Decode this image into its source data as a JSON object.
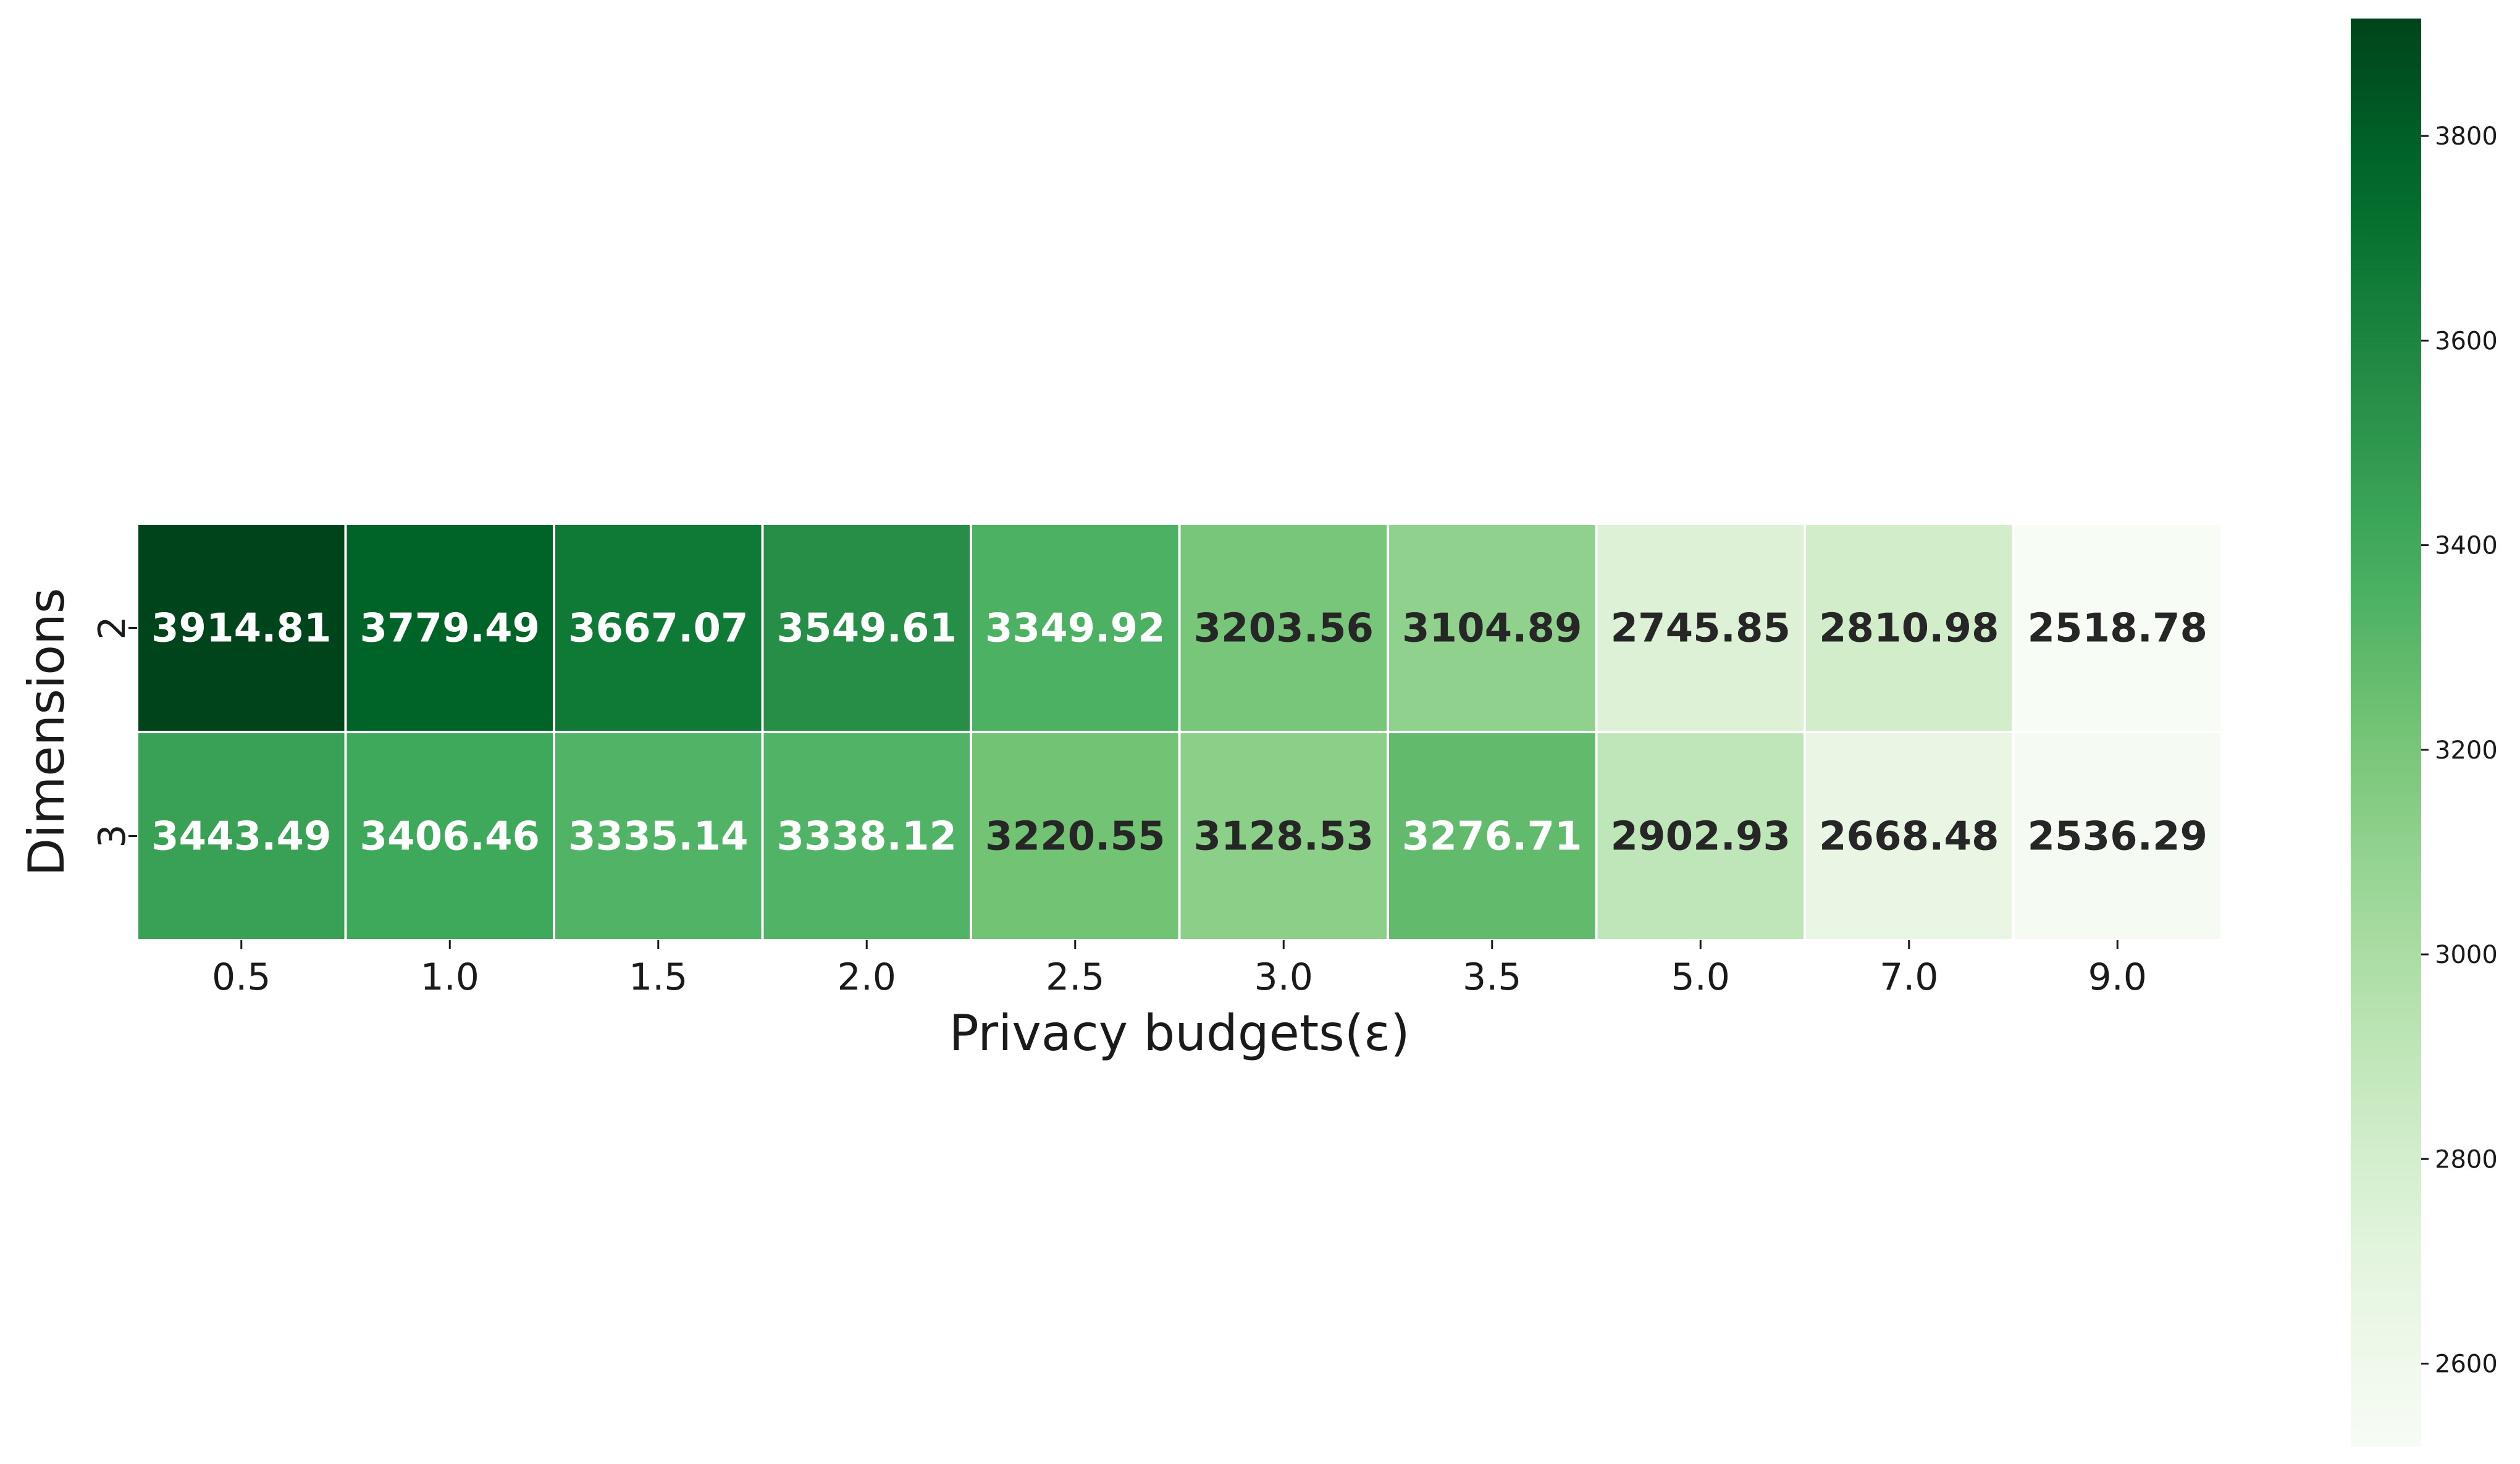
{
  "chart_data": {
    "type": "heatmap",
    "xlabel": "Privacy budgets(ε)",
    "ylabel": "Dimensions",
    "x_categories": [
      "0.5",
      "1.0",
      "1.5",
      "2.0",
      "2.5",
      "3.0",
      "3.5",
      "5.0",
      "7.0",
      "9.0"
    ],
    "y_categories": [
      "2",
      "3"
    ],
    "values": [
      [
        3914.81,
        3779.49,
        3667.07,
        3549.61,
        3349.92,
        3203.56,
        3104.89,
        2745.85,
        2810.98,
        2518.78
      ],
      [
        3443.49,
        3406.46,
        3335.14,
        3338.12,
        3220.55,
        3128.53,
        3276.71,
        2902.93,
        2668.48,
        2536.29
      ]
    ],
    "value_format": "2 decimals",
    "colormap": "Greens",
    "colorbar": {
      "ticks": [
        2600,
        2800,
        3000,
        3200,
        3400,
        3600,
        3800
      ],
      "range": [
        2518.78,
        3914.81
      ]
    },
    "grid": false
  }
}
